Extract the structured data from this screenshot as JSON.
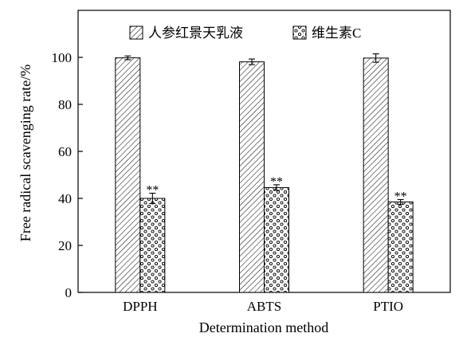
{
  "chart_data": {
    "type": "bar",
    "title": "",
    "xlabel": "Determination method",
    "ylabel": "Free radical scavenging rate/%",
    "categories": [
      "DPPH",
      "ABTS",
      "PTIO"
    ],
    "ylim": [
      0,
      120
    ],
    "yticks": [
      0,
      20,
      40,
      60,
      80,
      100
    ],
    "grid": false,
    "legend_position": "top",
    "series": [
      {
        "name": "人参红景天乳液",
        "pattern": "diagonal-hatch",
        "values": [
          99.8,
          98.1,
          99.7
        ],
        "errors": [
          0.8,
          1.2,
          1.8
        ],
        "annotations": [
          "",
          "",
          ""
        ]
      },
      {
        "name": "维生素C",
        "pattern": "dotted",
        "values": [
          40.0,
          44.6,
          38.5
        ],
        "errors": [
          2.2,
          1.2,
          1.0
        ],
        "annotations": [
          "**",
          "**",
          "**"
        ]
      }
    ]
  }
}
